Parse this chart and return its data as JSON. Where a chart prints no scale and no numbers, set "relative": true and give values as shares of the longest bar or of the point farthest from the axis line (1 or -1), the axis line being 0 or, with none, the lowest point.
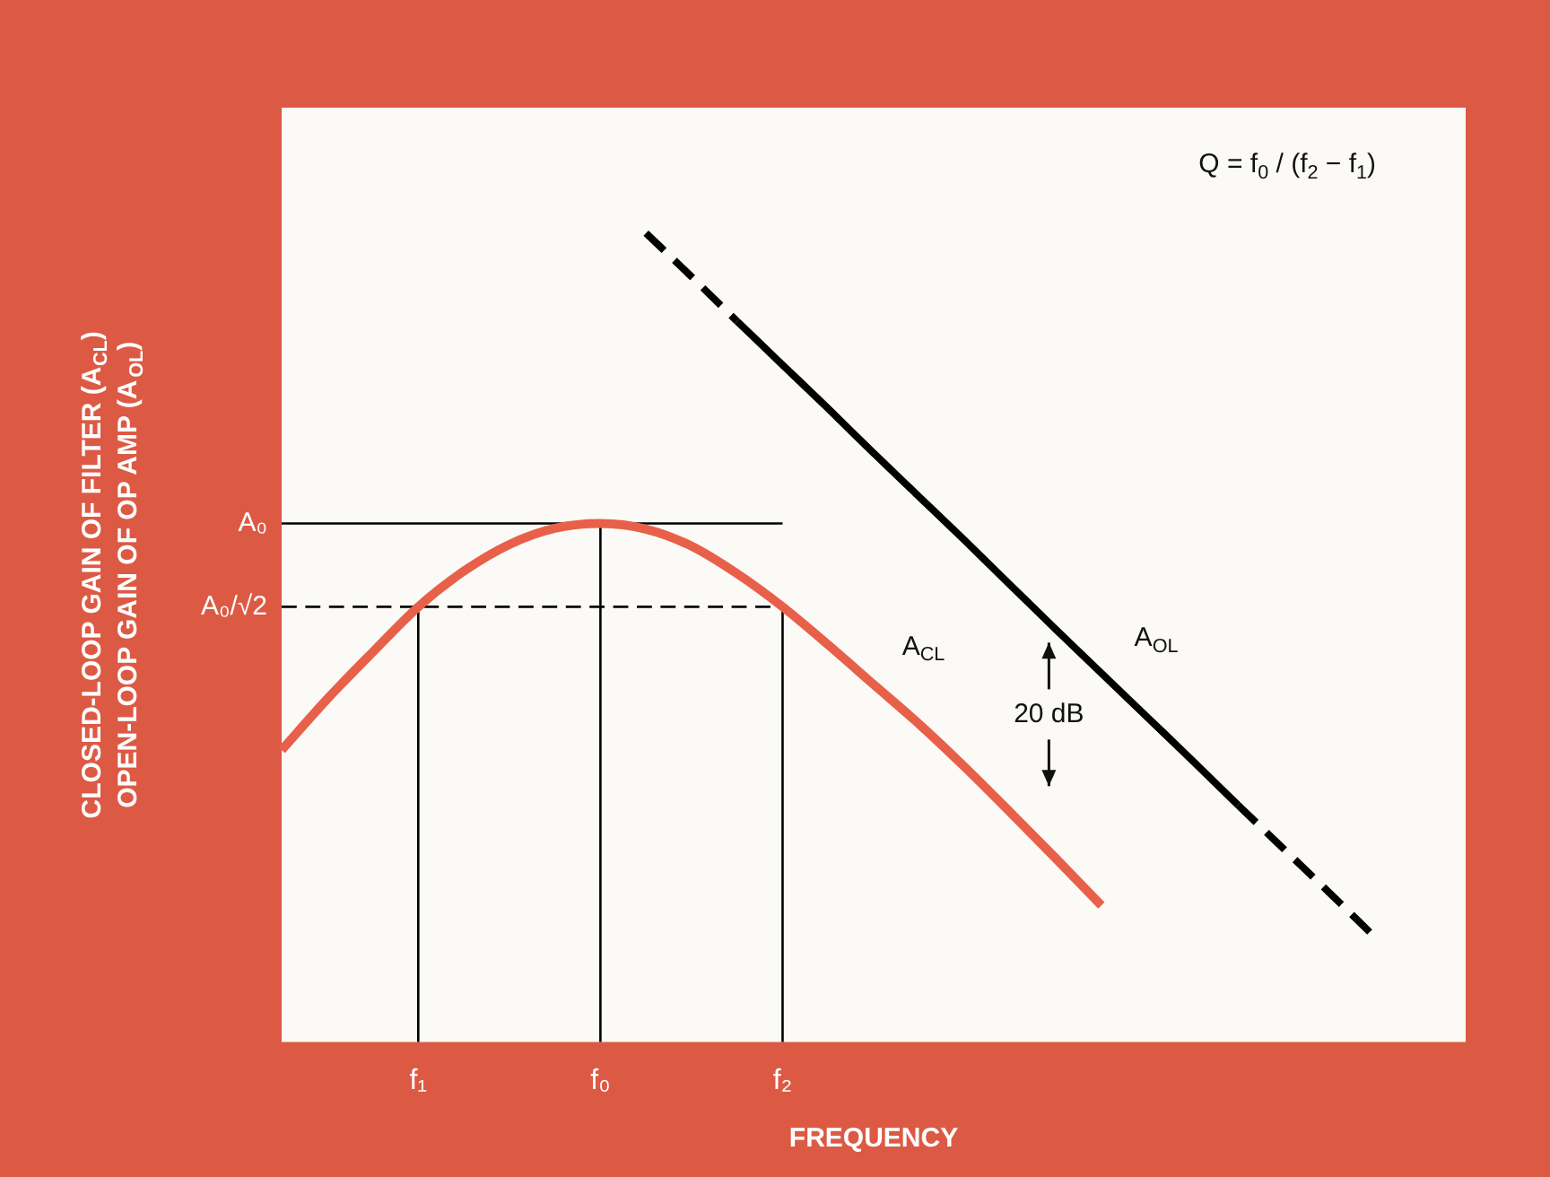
{
  "chart_data": {
    "type": "line",
    "relative": true,
    "xlabel": "FREQUENCY",
    "ylabel": "CLOSED-LOOP GAIN OF FILTER (A$_{CL}$)\nOPEN-LOOP GAIN OF OP AMP (A$_{OL}$)",
    "categories": [
      null,
      null,
      null,
      "f₁",
      null,
      null,
      null,
      "f₀",
      null,
      null,
      null,
      "f₂",
      null,
      null,
      null,
      null,
      null,
      null,
      null,
      null,
      null,
      null,
      null,
      null,
      null,
      null,
      null
    ],
    "grid": false,
    "legend": false,
    "marker": "none",
    "series": [
      {
        "name": "A$_{CL}$",
        "color": "#e8604a",
        "line_style": "solid",
        "values": [
          0.361,
          0.424,
          0.482,
          0.538,
          0.582,
          0.615,
          0.635,
          0.641,
          0.634,
          0.613,
          0.579,
          0.538,
          0.491,
          0.442,
          0.393,
          0.34,
          0.284,
          0.227,
          0.169,
          null,
          null,
          null,
          null,
          null,
          null,
          null,
          null
        ]
      },
      {
        "color": "#000000",
        "line_style": "dashed",
        "values": [
          null,
          null,
          null,
          null,
          null,
          null,
          null,
          null,
          1,
          0.946,
          0.891,
          null,
          null,
          null,
          null,
          null,
          null,
          null,
          null,
          null,
          null,
          null,
          null,
          null,
          null,
          null,
          null
        ]
      },
      {
        "name": "A$_{OL}$",
        "color": "#000000",
        "line_style": "solid",
        "values": [
          null,
          null,
          null,
          null,
          null,
          null,
          null,
          null,
          null,
          null,
          0.891,
          0.837,
          0.783,
          0.728,
          0.674,
          0.62,
          0.565,
          0.51,
          0.456,
          0.402,
          0.348,
          0.293,
          null,
          null,
          null,
          null,
          null
        ]
      },
      {
        "color": "#000000",
        "line_style": "dashed",
        "values": [
          null,
          null,
          null,
          null,
          null,
          null,
          null,
          null,
          null,
          null,
          null,
          null,
          null,
          null,
          null,
          null,
          null,
          null,
          null,
          null,
          null,
          0.293,
          0.239,
          0.185,
          0.13,
          null,
          null
        ]
      }
    ],
    "ref_lines": [
      {
        "axis": "y",
        "value": 0.641,
        "label": "A₀",
        "line_style": "solid"
      },
      {
        "axis": "y",
        "value": 0.538,
        "label": "A₀/√2",
        "line_style": "dashed"
      },
      {
        "axis": "x",
        "value": "f₁"
      },
      {
        "axis": "x",
        "value": "f₀"
      },
      {
        "axis": "x",
        "value": "f₂"
      }
    ],
    "annotations": [
      "Q = f$_{0}$ / (f$_{2}$ − f$_{1}$)",
      {
        "text": "20 dB",
        "y": 0.405
      }
    ]
  }
}
